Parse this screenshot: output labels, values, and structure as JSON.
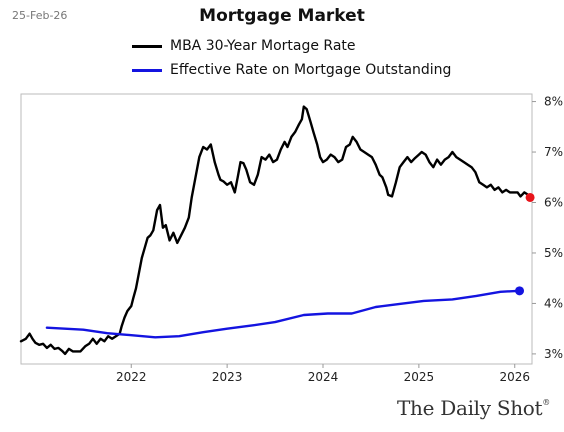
{
  "date_stamp": "25-Feb-26",
  "brand": {
    "text": "The Daily Shot",
    "mark": "®"
  },
  "chart_data": {
    "type": "line",
    "title": "Mortgage Market",
    "xlabel": "",
    "ylabel": "",
    "x_ticks": [
      "2022",
      "2023",
      "2024",
      "2025",
      "2026"
    ],
    "x_tick_values": [
      2022,
      2023,
      2024,
      2025,
      2026
    ],
    "y_ticks": [
      "3%",
      "4%",
      "5%",
      "6%",
      "7%",
      "8%"
    ],
    "y_tick_values": [
      3,
      4,
      5,
      6,
      7,
      8
    ],
    "xlim": [
      2020.85,
      2026.18
    ],
    "ylim": [
      2.8,
      8.15
    ],
    "legend_position": "top-center",
    "grid": false,
    "series": [
      {
        "name": "MBA 30-Year Mortage Rate",
        "color": "#000000",
        "endpoint_color": "#e8141b",
        "points": [
          [
            2020.85,
            3.25
          ],
          [
            2020.9,
            3.3
          ],
          [
            2020.94,
            3.4
          ],
          [
            2020.97,
            3.3
          ],
          [
            2021.0,
            3.22
          ],
          [
            2021.04,
            3.18
          ],
          [
            2021.08,
            3.2
          ],
          [
            2021.12,
            3.12
          ],
          [
            2021.16,
            3.18
          ],
          [
            2021.2,
            3.1
          ],
          [
            2021.24,
            3.12
          ],
          [
            2021.28,
            3.06
          ],
          [
            2021.31,
            3.0
          ],
          [
            2021.35,
            3.1
          ],
          [
            2021.39,
            3.05
          ],
          [
            2021.43,
            3.05
          ],
          [
            2021.47,
            3.05
          ],
          [
            2021.52,
            3.15
          ],
          [
            2021.56,
            3.2
          ],
          [
            2021.6,
            3.3
          ],
          [
            2021.64,
            3.2
          ],
          [
            2021.68,
            3.3
          ],
          [
            2021.72,
            3.25
          ],
          [
            2021.76,
            3.35
          ],
          [
            2021.8,
            3.3
          ],
          [
            2021.84,
            3.35
          ],
          [
            2021.88,
            3.4
          ],
          [
            2021.9,
            3.55
          ],
          [
            2021.93,
            3.72
          ],
          [
            2021.96,
            3.85
          ],
          [
            2022.0,
            3.95
          ],
          [
            2022.02,
            4.1
          ],
          [
            2022.05,
            4.3
          ],
          [
            2022.08,
            4.6
          ],
          [
            2022.11,
            4.9
          ],
          [
            2022.14,
            5.1
          ],
          [
            2022.17,
            5.3
          ],
          [
            2022.2,
            5.35
          ],
          [
            2022.23,
            5.45
          ],
          [
            2022.27,
            5.85
          ],
          [
            2022.3,
            5.95
          ],
          [
            2022.33,
            5.5
          ],
          [
            2022.36,
            5.55
          ],
          [
            2022.4,
            5.25
          ],
          [
            2022.44,
            5.4
          ],
          [
            2022.48,
            5.2
          ],
          [
            2022.52,
            5.35
          ],
          [
            2022.56,
            5.5
          ],
          [
            2022.6,
            5.7
          ],
          [
            2022.63,
            6.1
          ],
          [
            2022.67,
            6.5
          ],
          [
            2022.71,
            6.9
          ],
          [
            2022.75,
            7.1
          ],
          [
            2022.79,
            7.05
          ],
          [
            2022.83,
            7.15
          ],
          [
            2022.87,
            6.8
          ],
          [
            2022.91,
            6.55
          ],
          [
            2022.93,
            6.45
          ],
          [
            2022.96,
            6.42
          ],
          [
            2023.0,
            6.35
          ],
          [
            2023.04,
            6.4
          ],
          [
            2023.08,
            6.2
          ],
          [
            2023.11,
            6.5
          ],
          [
            2023.14,
            6.8
          ],
          [
            2023.17,
            6.78
          ],
          [
            2023.2,
            6.65
          ],
          [
            2023.24,
            6.4
          ],
          [
            2023.28,
            6.35
          ],
          [
            2023.32,
            6.55
          ],
          [
            2023.36,
            6.9
          ],
          [
            2023.4,
            6.85
          ],
          [
            2023.44,
            6.95
          ],
          [
            2023.48,
            6.8
          ],
          [
            2023.52,
            6.85
          ],
          [
            2023.56,
            7.05
          ],
          [
            2023.6,
            7.2
          ],
          [
            2023.63,
            7.1
          ],
          [
            2023.67,
            7.3
          ],
          [
            2023.71,
            7.4
          ],
          [
            2023.75,
            7.55
          ],
          [
            2023.78,
            7.65
          ],
          [
            2023.8,
            7.9
          ],
          [
            2023.83,
            7.85
          ],
          [
            2023.87,
            7.6
          ],
          [
            2023.9,
            7.4
          ],
          [
            2023.94,
            7.15
          ],
          [
            2023.97,
            6.9
          ],
          [
            2024.0,
            6.8
          ],
          [
            2024.04,
            6.85
          ],
          [
            2024.08,
            6.95
          ],
          [
            2024.12,
            6.9
          ],
          [
            2024.16,
            6.8
          ],
          [
            2024.2,
            6.85
          ],
          [
            2024.24,
            7.1
          ],
          [
            2024.28,
            7.15
          ],
          [
            2024.31,
            7.3
          ],
          [
            2024.35,
            7.2
          ],
          [
            2024.39,
            7.05
          ],
          [
            2024.43,
            7.0
          ],
          [
            2024.47,
            6.95
          ],
          [
            2024.51,
            6.9
          ],
          [
            2024.55,
            6.75
          ],
          [
            2024.59,
            6.55
          ],
          [
            2024.62,
            6.5
          ],
          [
            2024.66,
            6.3
          ],
          [
            2024.68,
            6.15
          ],
          [
            2024.72,
            6.12
          ],
          [
            2024.76,
            6.4
          ],
          [
            2024.8,
            6.7
          ],
          [
            2024.84,
            6.8
          ],
          [
            2024.88,
            6.9
          ],
          [
            2024.92,
            6.8
          ],
          [
            2024.96,
            6.88
          ],
          [
            2025.0,
            6.95
          ],
          [
            2025.03,
            7.0
          ],
          [
            2025.07,
            6.95
          ],
          [
            2025.11,
            6.8
          ],
          [
            2025.15,
            6.7
          ],
          [
            2025.19,
            6.85
          ],
          [
            2025.23,
            6.75
          ],
          [
            2025.27,
            6.85
          ],
          [
            2025.31,
            6.9
          ],
          [
            2025.35,
            7.0
          ],
          [
            2025.39,
            6.9
          ],
          [
            2025.43,
            6.85
          ],
          [
            2025.47,
            6.8
          ],
          [
            2025.51,
            6.75
          ],
          [
            2025.55,
            6.7
          ],
          [
            2025.59,
            6.6
          ],
          [
            2025.63,
            6.4
          ],
          [
            2025.67,
            6.35
          ],
          [
            2025.71,
            6.3
          ],
          [
            2025.75,
            6.35
          ],
          [
            2025.79,
            6.25
          ],
          [
            2025.83,
            6.3
          ],
          [
            2025.87,
            6.2
          ],
          [
            2025.91,
            6.25
          ],
          [
            2025.95,
            6.2
          ],
          [
            2026.0,
            6.2
          ],
          [
            2026.03,
            6.2
          ],
          [
            2026.06,
            6.12
          ],
          [
            2026.1,
            6.2
          ],
          [
            2026.14,
            6.15
          ],
          [
            2026.16,
            6.1
          ]
        ]
      },
      {
        "name": "Effective Rate on Mortgage Outstanding",
        "color": "#1414e0",
        "endpoint_color": "#1414e0",
        "points": [
          [
            2021.12,
            3.52
          ],
          [
            2021.5,
            3.48
          ],
          [
            2021.75,
            3.41
          ],
          [
            2022.0,
            3.37
          ],
          [
            2022.25,
            3.33
          ],
          [
            2022.5,
            3.35
          ],
          [
            2022.75,
            3.43
          ],
          [
            2023.0,
            3.5
          ],
          [
            2023.25,
            3.56
          ],
          [
            2023.5,
            3.63
          ],
          [
            2023.8,
            3.77
          ],
          [
            2024.05,
            3.8
          ],
          [
            2024.3,
            3.8
          ],
          [
            2024.55,
            3.93
          ],
          [
            2024.8,
            3.99
          ],
          [
            2025.05,
            4.05
          ],
          [
            2025.35,
            4.08
          ],
          [
            2025.6,
            4.15
          ],
          [
            2025.85,
            4.23
          ],
          [
            2026.05,
            4.25
          ]
        ]
      }
    ]
  }
}
